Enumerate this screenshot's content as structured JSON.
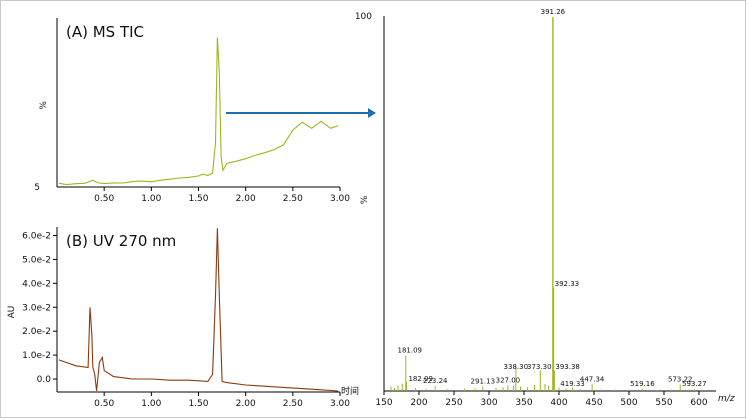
{
  "colors": {
    "ms": "#a3b422",
    "uv": "#8b3a0e",
    "arrow": "#1f6fa8",
    "axis": "#000000"
  },
  "panels": {
    "ms_title": "(A) MS TIC",
    "uv_title": "(B) UV 270 nm"
  },
  "chart_data": [
    {
      "type": "line",
      "title": "(A) MS TIC",
      "ylabel": "%",
      "xlim": [
        0.0,
        3.0
      ],
      "x_ticks": [
        "0.50",
        "1.00",
        "1.50",
        "2.00",
        "2.50",
        "3.00"
      ],
      "y_ticks": [
        "5"
      ],
      "series": [
        {
          "x": [
            0.02,
            0.1,
            0.2,
            0.3,
            0.38,
            0.4,
            0.45,
            0.5,
            0.6,
            0.7,
            0.8,
            0.9,
            1.0,
            1.1,
            1.2,
            1.3,
            1.4,
            1.5,
            1.55,
            1.6,
            1.65,
            1.68,
            1.7,
            1.72,
            1.74,
            1.76,
            1.8,
            1.9,
            2.0,
            2.1,
            2.2,
            2.3,
            2.4,
            2.5,
            2.6,
            2.7,
            2.8,
            2.9,
            2.98
          ],
          "y": [
            6.6,
            5.8,
            6.3,
            6.6,
            8.3,
            7.6,
            6.7,
            6.4,
            6.8,
            6.7,
            7.5,
            7.8,
            7.4,
            8.3,
            8.9,
            9.6,
            10.0,
            10.7,
            11.8,
            11.0,
            12.4,
            30.0,
            90.0,
            70.0,
            22.0,
            13.9,
            18.0,
            19.2,
            20.6,
            22.5,
            24.0,
            25.8,
            28.5,
            37.0,
            41.5,
            38.0,
            42.0,
            38.0,
            39.5
          ]
        }
      ]
    },
    {
      "type": "line",
      "title": "(B) UV 270 nm",
      "ylabel": "AU",
      "xlabel": "时间",
      "xlim": [
        0.0,
        3.0
      ],
      "ylim": [
        -0.006,
        0.065
      ],
      "x_ticks": [
        "0.50",
        "1.00",
        "1.50",
        "2.00",
        "2.50",
        "3.00"
      ],
      "y_ticks": [
        "0.0",
        "1.0e-2",
        "2.0e-2",
        "3.0e-2",
        "4.0e-2",
        "5.0e-2",
        "6.0e-2"
      ],
      "series": [
        {
          "x": [
            0.02,
            0.2,
            0.33,
            0.35,
            0.37,
            0.38,
            0.4,
            0.42,
            0.45,
            0.48,
            0.5,
            0.6,
            0.8,
            1.0,
            1.2,
            1.4,
            1.6,
            1.65,
            1.68,
            1.7,
            1.72,
            1.75,
            1.8,
            2.0,
            2.2,
            2.4,
            2.6,
            2.8,
            2.98
          ],
          "y": [
            0.008,
            0.0055,
            0.0048,
            0.03,
            0.018,
            0.005,
            0.002,
            -0.005,
            0.007,
            0.009,
            0.0035,
            0.001,
            0.0,
            0.0,
            -0.0005,
            -0.0005,
            -0.001,
            0.002,
            0.035,
            0.063,
            0.035,
            -0.001,
            -0.0015,
            -0.0025,
            -0.003,
            -0.0035,
            -0.004,
            -0.0045,
            -0.005
          ]
        }
      ]
    },
    {
      "type": "bar",
      "title": "",
      "ylabel": "%",
      "xlabel": "m/z",
      "xlim": [
        150,
        600
      ],
      "ylim": [
        0,
        100
      ],
      "x_ticks": [
        "150",
        "200",
        "250",
        "300",
        "350",
        "400",
        "450",
        "500",
        "550",
        "600"
      ],
      "y_ticks": [
        "100"
      ],
      "peaks": [
        {
          "mz": 181.09,
          "intensity": 9.5,
          "label": "181.09"
        },
        {
          "mz": 182.09,
          "intensity": 2.5,
          "label": "182.09"
        },
        {
          "mz": 223.24,
          "intensity": 1.3,
          "label": "223.24"
        },
        {
          "mz": 291.13,
          "intensity": 1.2,
          "label": "291.13"
        },
        {
          "mz": 327.0,
          "intensity": 1.5,
          "label": "327.00"
        },
        {
          "mz": 338.3,
          "intensity": 6.5,
          "label": "338.30"
        },
        {
          "mz": 373.3,
          "intensity": 5.5,
          "label": "373.30"
        },
        {
          "mz": 391.26,
          "intensity": 100,
          "label": "391.26"
        },
        {
          "mz": 392.33,
          "intensity": 27.5,
          "label": "392.33"
        },
        {
          "mz": 393.38,
          "intensity": 5.5,
          "label": "393.38"
        },
        {
          "mz": 419.33,
          "intensity": 0.9,
          "label": "419.33"
        },
        {
          "mz": 447.34,
          "intensity": 1.8,
          "label": "447.34"
        },
        {
          "mz": 519.16,
          "intensity": 0.6,
          "label": "519.16"
        },
        {
          "mz": 573.22,
          "intensity": 1.7,
          "label": "573.22"
        },
        {
          "mz": 593.27,
          "intensity": 0.5,
          "label": "593.27"
        }
      ],
      "minor_peaks": [
        {
          "mz": 160,
          "intensity": 1.2
        },
        {
          "mz": 165,
          "intensity": 0.8
        },
        {
          "mz": 170,
          "intensity": 1.5
        },
        {
          "mz": 176,
          "intensity": 2.0
        },
        {
          "mz": 195,
          "intensity": 0.8
        },
        {
          "mz": 210,
          "intensity": 0.6
        },
        {
          "mz": 240,
          "intensity": 0.5
        },
        {
          "mz": 265,
          "intensity": 0.6
        },
        {
          "mz": 280,
          "intensity": 0.7
        },
        {
          "mz": 310,
          "intensity": 0.8
        },
        {
          "mz": 320,
          "intensity": 1.0
        },
        {
          "mz": 335,
          "intensity": 1.4
        },
        {
          "mz": 345,
          "intensity": 1.2
        },
        {
          "mz": 355,
          "intensity": 1.0
        },
        {
          "mz": 365,
          "intensity": 1.6
        },
        {
          "mz": 380,
          "intensity": 1.9
        },
        {
          "mz": 385,
          "intensity": 1.4
        },
        {
          "mz": 400,
          "intensity": 0.9
        },
        {
          "mz": 410,
          "intensity": 0.6
        },
        {
          "mz": 430,
          "intensity": 0.5
        },
        {
          "mz": 460,
          "intensity": 0.4
        },
        {
          "mz": 480,
          "intensity": 0.4
        },
        {
          "mz": 500,
          "intensity": 0.3
        },
        {
          "mz": 540,
          "intensity": 0.3
        },
        {
          "mz": 560,
          "intensity": 0.4
        },
        {
          "mz": 585,
          "intensity": 0.3
        }
      ]
    }
  ]
}
